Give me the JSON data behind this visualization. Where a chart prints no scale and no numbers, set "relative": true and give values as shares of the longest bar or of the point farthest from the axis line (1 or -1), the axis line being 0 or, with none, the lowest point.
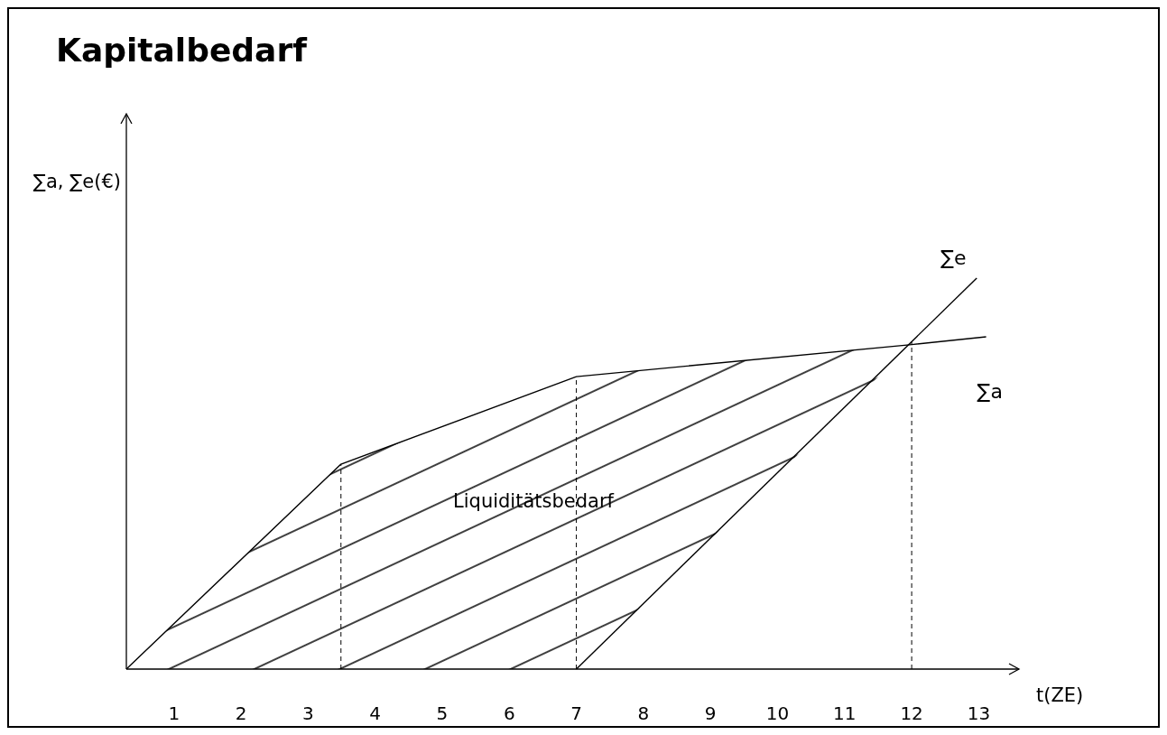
{
  "chart_data": {
    "type": "line",
    "title": "Kapitalbedarf",
    "xlabel": "t(ZE)",
    "ylabel": "∑a, ∑e(€)",
    "relative": true,
    "xlim": [
      0.29,
      13.6
    ],
    "xticks": [
      1,
      2,
      3,
      4,
      5,
      6,
      7,
      8,
      9,
      10,
      11,
      12,
      13
    ],
    "series": [
      {
        "name": "∑a",
        "color": "#000000",
        "x": [
          0.29,
          3.49,
          7,
          12,
          13.11
        ],
        "values": [
          0,
          0.524,
          0.748,
          0.83,
          0.85
        ],
        "lower": [
          0,
          0,
          0,
          0.83,
          null
        ],
        "upper": [
          0,
          0.524,
          0.748,
          0.83,
          null
        ]
      },
      {
        "name": "∑e",
        "color": "#000000",
        "x": [
          7,
          12.97
        ],
        "values": [
          0,
          1
        ]
      }
    ],
    "ref_lines": [
      {
        "axis": "x",
        "value": 3.49,
        "line_style": "dashed"
      },
      {
        "axis": "x",
        "value": 7,
        "line_style": "dashed"
      },
      {
        "axis": "x",
        "value": 12,
        "line_style": "dashed"
      }
    ],
    "annotations": [
      "Liquiditätsbedarf"
    ],
    "tick_labels": "x",
    "line_style": "solid"
  }
}
